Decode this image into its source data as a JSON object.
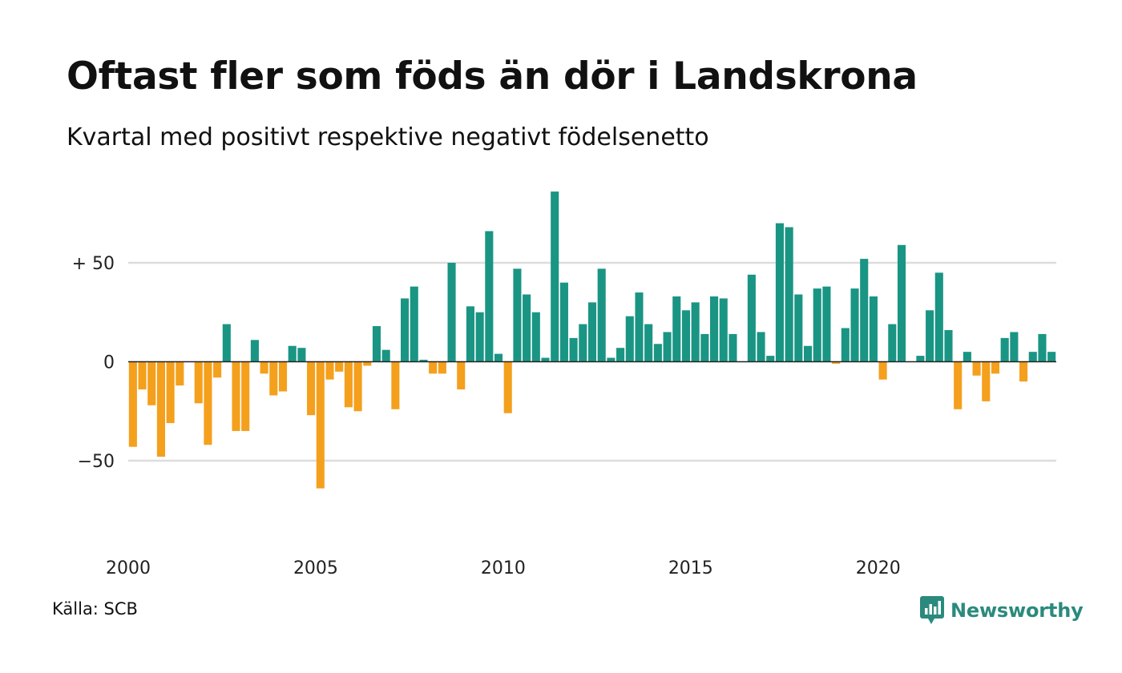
{
  "chart_data": {
    "type": "bar",
    "title": "Oftast fler som föds än dör i Landskrona",
    "subtitle": "Kvartal med positivt respektive negativt födelsenetto",
    "x_start": 2000.0,
    "x_step": 0.25,
    "values": [
      -43,
      -14,
      -22,
      -48,
      -31,
      -12,
      0,
      -21,
      -42,
      -8,
      19,
      -35,
      -35,
      11,
      -6,
      -17,
      -15,
      8,
      7,
      -27,
      -64,
      -9,
      -5,
      -23,
      -25,
      -2,
      18,
      6,
      -24,
      32,
      38,
      1,
      -6,
      -6,
      50,
      -14,
      28,
      25,
      66,
      4,
      -26,
      47,
      34,
      25,
      2,
      86,
      40,
      12,
      19,
      30,
      47,
      2,
      7,
      23,
      35,
      19,
      9,
      15,
      33,
      26,
      30,
      14,
      33,
      32,
      14,
      0,
      44,
      15,
      3,
      70,
      68,
      34,
      8,
      37,
      38,
      -1,
      17,
      37,
      52,
      33,
      -9,
      19,
      59,
      0,
      3,
      26,
      45,
      16,
      -24,
      5,
      -7,
      -20,
      -6,
      12,
      15,
      -10,
      5,
      14,
      5
    ],
    "ylim": [
      -80,
      88
    ],
    "yticks": [
      {
        "value": 50,
        "label": "+ 50"
      },
      {
        "value": 0,
        "label": "0"
      },
      {
        "value": -50,
        "label": "−50"
      }
    ],
    "xticks": [
      {
        "value": 2000,
        "label": "2000"
      },
      {
        "value": 2005,
        "label": "2005"
      },
      {
        "value": 2010,
        "label": "2010"
      },
      {
        "value": 2015,
        "label": "2015"
      },
      {
        "value": 2020,
        "label": "2020"
      }
    ],
    "colors": {
      "positive": "#1a9584",
      "negative": "#f4a01d",
      "grid": "#dddddd",
      "zero": "#222222"
    },
    "grid": true,
    "legend": "none"
  },
  "footer": {
    "source": "Källa: SCB",
    "brand": "Newsworthy"
  },
  "brand_icon": "newsworthy-chat-bars-icon"
}
